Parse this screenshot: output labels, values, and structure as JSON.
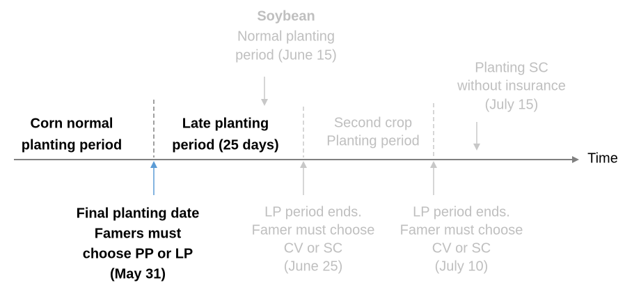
{
  "axis_label": "Time",
  "periods": [
    {
      "lines": [
        "Corn normal",
        "planting period"
      ]
    },
    {
      "lines": [
        "Late planting",
        "period (25 days)"
      ]
    },
    {
      "lines": [
        "Second crop",
        "Planting period"
      ]
    }
  ],
  "events_above": [
    {
      "lines": [
        "Soybean",
        "Normal planting",
        "period (June 15)"
      ]
    },
    {
      "lines": [
        "Planting SC",
        "without insurance",
        "(July 15)"
      ]
    }
  ],
  "events_below": [
    {
      "lines": [
        "Final planting date",
        "Famers must",
        "choose PP or LP",
        "(May 31)"
      ]
    },
    {
      "lines": [
        "LP period ends.",
        "Famer must choose",
        "CV or SC",
        "(June 25)"
      ]
    },
    {
      "lines": [
        "LP period ends.",
        "Famer must choose",
        "CV or SC",
        "(July 10)"
      ]
    }
  ]
}
